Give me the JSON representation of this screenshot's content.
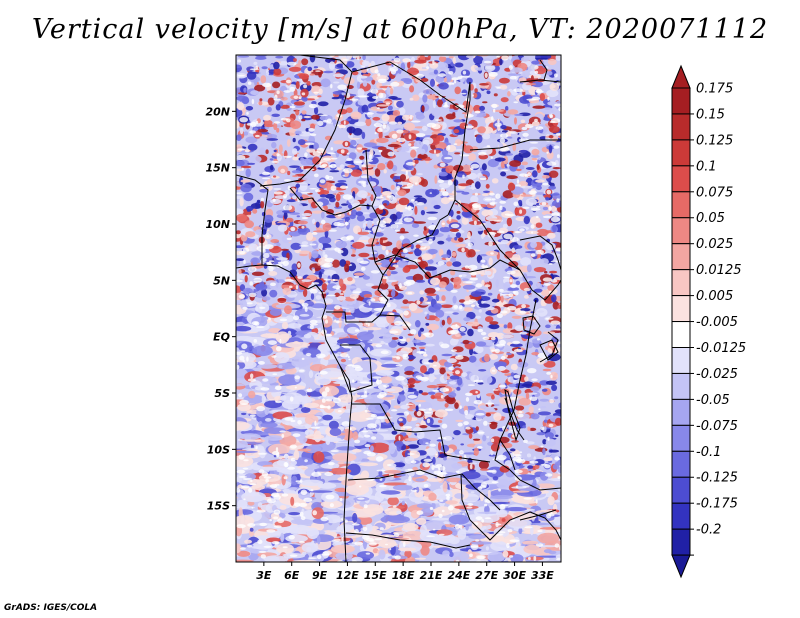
{
  "title": "Vertical velocity [m/s] at 600hPa, VT: 2020071112",
  "credit": "GrADS: IGES/COLA",
  "map": {
    "lat_range": [
      -20,
      25
    ],
    "lon_range": [
      0,
      35
    ],
    "lat_ticks": [
      {
        "value": 20,
        "label": "20N"
      },
      {
        "value": 15,
        "label": "15N"
      },
      {
        "value": 10,
        "label": "10N"
      },
      {
        "value": 5,
        "label": "5N"
      },
      {
        "value": 0,
        "label": "EQ"
      },
      {
        "value": -5,
        "label": "5S"
      },
      {
        "value": -10,
        "label": "10S"
      },
      {
        "value": -15,
        "label": "15S"
      }
    ],
    "lon_ticks": [
      {
        "value": 3,
        "label": "3E"
      },
      {
        "value": 6,
        "label": "6E"
      },
      {
        "value": 9,
        "label": "9E"
      },
      {
        "value": 12,
        "label": "12E"
      },
      {
        "value": 15,
        "label": "15E"
      },
      {
        "value": 18,
        "label": "18E"
      },
      {
        "value": 21,
        "label": "21E"
      },
      {
        "value": 24,
        "label": "24E"
      },
      {
        "value": 27,
        "label": "27E"
      },
      {
        "value": 30,
        "label": "30E"
      },
      {
        "value": 33,
        "label": "33E"
      }
    ]
  },
  "colorbar": {
    "levels": [
      {
        "label": "0.175",
        "color": "#a51e22"
      },
      {
        "label": "0.15",
        "color": "#b82b2b"
      },
      {
        "label": "0.125",
        "color": "#cc3a38"
      },
      {
        "label": "0.1",
        "color": "#dc4d4b"
      },
      {
        "label": "0.075",
        "color": "#e66a66"
      },
      {
        "label": "0.05",
        "color": "#ee8884"
      },
      {
        "label": "0.025",
        "color": "#f3a6a2"
      },
      {
        "label": "0.0125",
        "color": "#f8c6c3"
      },
      {
        "label": "0.005",
        "color": "#fbe2e0"
      },
      {
        "label": "-0.005",
        "color": "#ffffff"
      },
      {
        "label": "-0.0125",
        "color": "#e2e2fb"
      },
      {
        "label": "-0.025",
        "color": "#c4c4f6"
      },
      {
        "label": "-0.05",
        "color": "#a6a6f1"
      },
      {
        "label": "-0.075",
        "color": "#8888ea"
      },
      {
        "label": "-0.1",
        "color": "#6a6ae0"
      },
      {
        "label": "-0.125",
        "color": "#4d4dd2"
      },
      {
        "label": "-0.175",
        "color": "#3333c0"
      },
      {
        "label": "-0.2",
        "color": "#2020a6"
      }
    ],
    "top_color": "#a51e22",
    "bottom_color": "#1a1a96"
  }
}
